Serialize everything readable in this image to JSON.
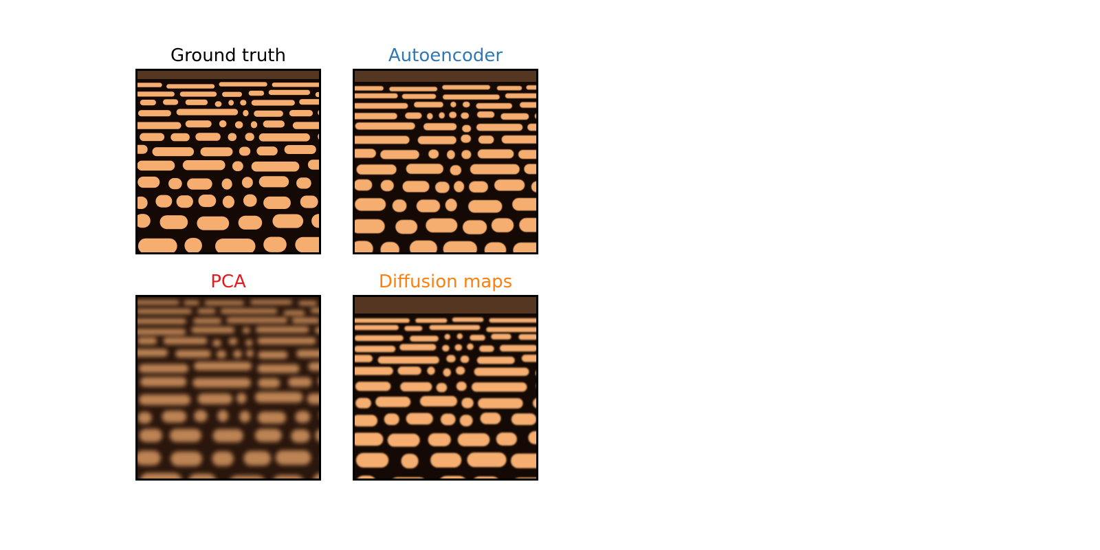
{
  "colors": {
    "ground_truth_title": "#000000",
    "autoencoder_title": "#2f77b5",
    "pca_title": "#e41a1c",
    "diffusion_title": "#ff7f0e",
    "blob": "#f5ad6f",
    "background": "#140904",
    "top_band": "#553620"
  },
  "panels": {
    "ground_truth": {
      "title": "Ground truth"
    },
    "autoencoder": {
      "title": "Autoencoder"
    },
    "pca": {
      "title": "PCA"
    },
    "diffusion_maps": {
      "title": "Diffusion maps"
    }
  }
}
